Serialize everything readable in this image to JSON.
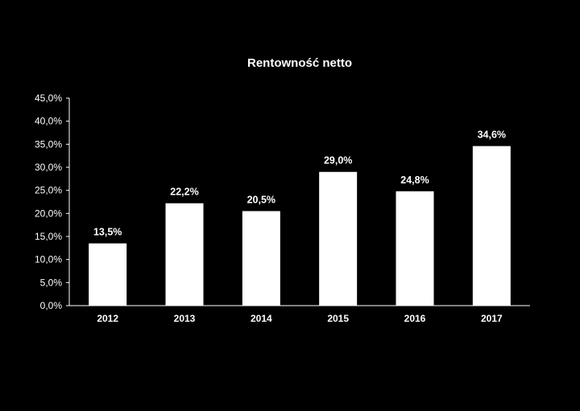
{
  "chart_data": {
    "type": "bar",
    "title": "Rentowność netto",
    "categories": [
      "2012",
      "2013",
      "2014",
      "2015",
      "2016",
      "2017"
    ],
    "values": [
      13.5,
      22.2,
      20.5,
      29.0,
      24.8,
      34.6
    ],
    "data_labels": [
      "13,5%",
      "22,2%",
      "20,5%",
      "29,0%",
      "24,8%",
      "34,6%"
    ],
    "yticks": [
      0,
      5,
      10,
      15,
      20,
      25,
      30,
      35,
      40,
      45
    ],
    "ytick_labels": [
      "0,0%",
      "5,0%",
      "10,0%",
      "15,0%",
      "20,0%",
      "25,0%",
      "30,0%",
      "35,0%",
      "40,0%",
      "45,0%"
    ],
    "ylim": [
      0,
      45
    ],
    "xlabel": "",
    "ylabel": "",
    "grid": false,
    "legend": "none",
    "colors": {
      "background": "#000000",
      "bar": "#ffffff",
      "text": "#ffffff",
      "axis": "#ffffff"
    }
  }
}
